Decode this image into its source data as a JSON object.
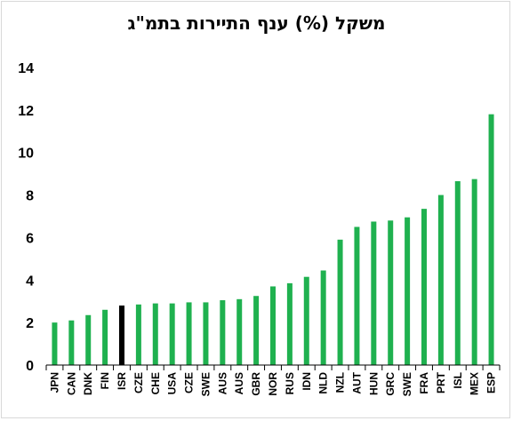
{
  "chart_data": {
    "type": "bar",
    "title": "משקל (%) ענף התיירות בתמ\"ג",
    "xlabel": "",
    "ylabel": "",
    "ylim": [
      0,
      14
    ],
    "yticks": [
      0,
      2,
      4,
      6,
      8,
      10,
      12,
      14
    ],
    "grid": false,
    "categories": [
      "JPN",
      "CAN",
      "DNK",
      "FIN",
      "ISR",
      "CZE",
      "CHE",
      "USA",
      "CZE",
      "SWE",
      "AUS",
      "AUS",
      "GBR",
      "NOR",
      "RUS",
      "IDN",
      "NLD",
      "NZL",
      "AUT",
      "HUN",
      "GRC",
      "SWE",
      "FRA",
      "PRT",
      "ISL",
      "MEX",
      "ESP"
    ],
    "values": [
      2.0,
      2.1,
      2.35,
      2.6,
      2.8,
      2.85,
      2.9,
      2.9,
      2.95,
      2.95,
      3.05,
      3.1,
      3.25,
      3.7,
      3.85,
      4.15,
      4.45,
      5.9,
      6.5,
      6.75,
      6.8,
      6.95,
      7.35,
      8.0,
      8.65,
      8.75,
      11.8
    ],
    "highlight_category": "ISR",
    "colors": {
      "bar": "#1fb14f",
      "highlight": "#000000",
      "axis": "#000000"
    }
  }
}
